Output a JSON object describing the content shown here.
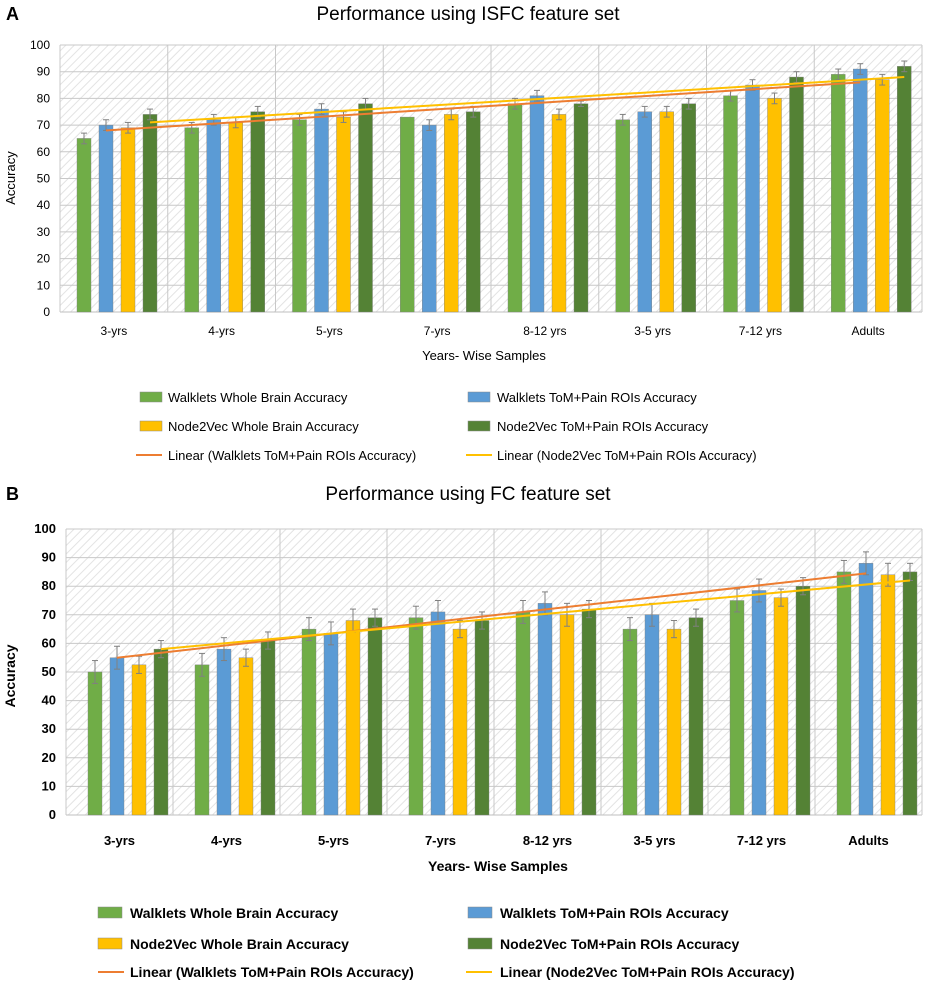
{
  "colors": {
    "walklets_whole": "#70ad47",
    "walklets_tom": "#5b9bd5",
    "node2vec_whole": "#ffc000",
    "node2vec_tom": "#548235",
    "linear_walklets": "#ed7d31",
    "linear_node2vec": "#ffc000",
    "grid": "#c8c8c8",
    "errorbar": "#808080"
  },
  "chart_data": [
    {
      "panel": "A",
      "type": "bar",
      "title": "Performance using ISFC feature set",
      "xlabel": "Years- Wise Samples",
      "ylabel": "Accuracy",
      "ylim": [
        0,
        100
      ],
      "yticks": [
        0,
        10,
        20,
        30,
        40,
        50,
        60,
        70,
        80,
        90,
        100
      ],
      "categories": [
        "3-yrs",
        "4-yrs",
        "5-yrs",
        "7-yrs",
        "8-12 yrs",
        "3-5 yrs",
        "7-12 yrs",
        "Adults"
      ],
      "series": [
        {
          "name": "Walklets Whole Brain Accuracy",
          "color_key": "walklets_whole",
          "values": [
            65,
            69,
            72,
            73,
            78,
            72,
            81,
            89
          ],
          "errors": [
            2,
            2,
            2,
            0,
            2,
            2,
            2,
            2
          ]
        },
        {
          "name": "Walklets ToM+Pain ROIs Accuracy",
          "color_key": "walklets_tom",
          "values": [
            70,
            72,
            76,
            70,
            81,
            75,
            85,
            91
          ],
          "errors": [
            2,
            2,
            2,
            2,
            2,
            2,
            2,
            2
          ]
        },
        {
          "name": "Node2Vec Whole Brain Accuracy",
          "color_key": "node2vec_whole",
          "values": [
            69,
            71,
            73,
            74,
            74,
            75,
            80,
            87
          ],
          "errors": [
            2,
            2,
            2,
            2,
            2,
            2,
            2,
            2
          ]
        },
        {
          "name": "Node2Vec ToM+Pain ROIs Accuracy",
          "color_key": "node2vec_tom",
          "values": [
            74,
            75,
            78,
            75,
            78,
            78,
            88,
            92
          ],
          "errors": [
            2,
            2,
            2,
            2,
            1,
            2,
            2,
            2
          ]
        }
      ],
      "trendlines": [
        {
          "name": "Linear (Walklets ToM+Pain ROIs Accuracy)",
          "color_key": "linear_walklets",
          "start": 68,
          "end": 86
        },
        {
          "name": "Linear (Node2Vec ToM+Pain ROIs Accuracy)",
          "color_key": "linear_node2vec",
          "start": 71,
          "end": 88
        }
      ],
      "legend": [
        "Walklets Whole Brain Accuracy",
        "Walklets ToM+Pain ROIs Accuracy",
        "Node2Vec Whole Brain Accuracy",
        "Node2Vec ToM+Pain ROIs Accuracy",
        "Linear (Walklets ToM+Pain ROIs Accuracy)",
        "Linear (Node2Vec ToM+Pain ROIs Accuracy)"
      ]
    },
    {
      "panel": "B",
      "type": "bar",
      "title": "Performance using FC feature set",
      "xlabel": "Years- Wise Samples",
      "ylabel": "Accuracy",
      "ylim": [
        0,
        100
      ],
      "yticks": [
        0,
        10,
        20,
        30,
        40,
        50,
        60,
        70,
        80,
        90,
        100
      ],
      "categories": [
        "3-yrs",
        "4-yrs",
        "5-yrs",
        "7-yrs",
        "8-12 yrs",
        "3-5 yrs",
        "7-12 yrs",
        "Adults"
      ],
      "series": [
        {
          "name": "Walklets Whole Brain Accuracy",
          "color_key": "walklets_whole",
          "values": [
            50,
            52.5,
            65,
            69,
            71,
            65,
            75,
            85
          ],
          "errors": [
            4,
            4,
            4,
            4,
            4,
            4,
            4,
            4
          ]
        },
        {
          "name": "Walklets ToM+Pain ROIs Accuracy",
          "color_key": "walklets_tom",
          "values": [
            55,
            58,
            63.5,
            71,
            74,
            70,
            78.5,
            88
          ],
          "errors": [
            4,
            4,
            4,
            4,
            4,
            4,
            4,
            4
          ]
        },
        {
          "name": "Node2Vec Whole Brain Accuracy",
          "color_key": "node2vec_whole",
          "values": [
            52.5,
            55,
            68,
            65,
            70,
            65,
            76,
            84
          ],
          "errors": [
            3,
            3,
            4,
            3,
            4,
            3,
            3,
            4
          ]
        },
        {
          "name": "Node2Vec ToM+Pain ROIs Accuracy",
          "color_key": "node2vec_tom",
          "values": [
            58,
            61,
            69,
            68,
            72,
            69,
            80,
            85
          ],
          "errors": [
            3,
            3,
            3,
            3,
            3,
            3,
            3,
            3
          ]
        }
      ],
      "trendlines": [
        {
          "name": "Linear (Walklets ToM+Pain ROIs Accuracy)",
          "color_key": "linear_walklets",
          "start": 55,
          "end": 84.5
        },
        {
          "name": "Linear (Node2Vec ToM+Pain ROIs Accuracy)",
          "color_key": "linear_node2vec",
          "start": 58,
          "end": 82
        }
      ],
      "legend": [
        "Walklets Whole Brain Accuracy",
        "Walklets ToM+Pain ROIs Accuracy",
        "Node2Vec Whole Brain Accuracy",
        "Node2Vec ToM+Pain ROIs Accuracy",
        "Linear (Walklets ToM+Pain ROIs Accuracy)",
        "Linear (Node2Vec ToM+Pain ROIs Accuracy)"
      ]
    }
  ]
}
